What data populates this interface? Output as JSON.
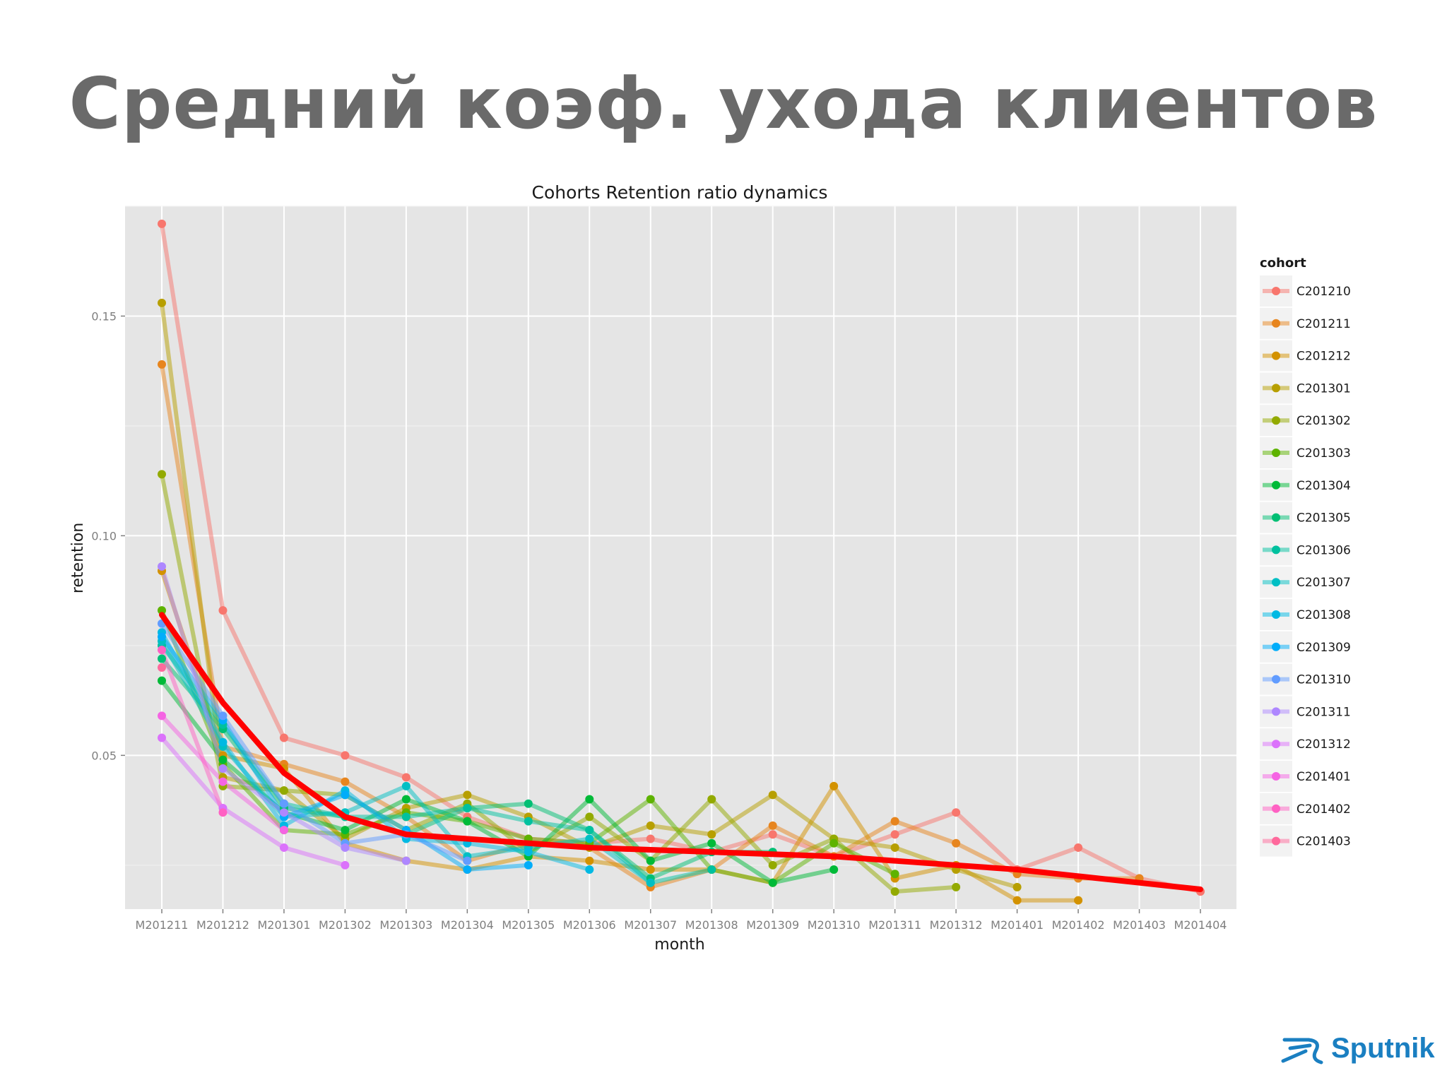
{
  "slide": {
    "title": "Средний коэф. ухода клиентов"
  },
  "logo": {
    "text": "Sputnik",
    "color": "#1a7fc1"
  },
  "chart_data": {
    "type": "line",
    "title": "Cohorts Retention ratio dynamics",
    "xlabel": "month",
    "ylabel": "retention",
    "legend_title": "cohort",
    "legend_position": "right",
    "grid": true,
    "ylim": [
      0.015,
      0.175
    ],
    "yticks": [
      0.05,
      0.1,
      0.15
    ],
    "ytick_labels": [
      "0.05",
      "0.10",
      "0.15"
    ],
    "categories": [
      "M201211",
      "M201212",
      "M201301",
      "M201302",
      "M201303",
      "M201304",
      "M201305",
      "M201306",
      "M201307",
      "M201308",
      "M201309",
      "M201310",
      "M201311",
      "M201312",
      "M201401",
      "M201402",
      "M201403",
      "M201404"
    ],
    "series": [
      {
        "name": "C201210",
        "color": "#F8766D",
        "values": [
          0.171,
          0.083,
          0.054,
          0.05,
          0.045,
          0.036,
          0.031,
          0.03,
          0.031,
          0.028,
          0.032,
          0.027,
          0.032,
          0.037,
          0.024,
          0.029,
          0.022,
          0.019
        ]
      },
      {
        "name": "C201211",
        "color": "#E7851E",
        "values": [
          0.139,
          0.052,
          0.048,
          0.044,
          0.036,
          0.026,
          0.03,
          0.029,
          0.02,
          0.024,
          0.034,
          0.027,
          0.035,
          0.03,
          0.023,
          0.022,
          0.022,
          null
        ]
      },
      {
        "name": "C201212",
        "color": "#D39200",
        "values": [
          0.092,
          0.05,
          0.047,
          0.03,
          0.026,
          0.024,
          0.027,
          0.026,
          0.024,
          0.024,
          0.021,
          0.043,
          0.022,
          0.025,
          0.017,
          0.017,
          null,
          null
        ]
      },
      {
        "name": "C201301",
        "color": "#B79F00",
        "values": [
          0.153,
          0.045,
          0.042,
          0.031,
          0.038,
          0.041,
          0.036,
          0.029,
          0.034,
          0.032,
          0.041,
          0.031,
          0.029,
          0.024,
          0.02,
          null,
          null,
          null
        ]
      },
      {
        "name": "C201302",
        "color": "#93AA00",
        "values": [
          0.114,
          0.043,
          0.042,
          0.041,
          0.033,
          0.039,
          0.028,
          0.036,
          0.026,
          0.04,
          0.025,
          0.031,
          0.019,
          0.02,
          null,
          null,
          null,
          null
        ]
      },
      {
        "name": "C201303",
        "color": "#5EB300",
        "values": [
          0.083,
          0.048,
          0.033,
          0.032,
          0.037,
          0.035,
          0.031,
          0.03,
          0.04,
          0.024,
          0.021,
          0.03,
          0.023,
          null,
          null,
          null,
          null,
          null
        ]
      },
      {
        "name": "C201304",
        "color": "#00BA38",
        "values": [
          0.067,
          0.049,
          0.037,
          0.033,
          0.04,
          0.035,
          0.027,
          0.04,
          0.026,
          0.03,
          0.021,
          0.024,
          null,
          null,
          null,
          null,
          null,
          null
        ]
      },
      {
        "name": "C201305",
        "color": "#00BF74",
        "values": [
          0.072,
          0.056,
          0.038,
          0.036,
          0.032,
          0.038,
          0.039,
          0.033,
          0.022,
          0.028,
          0.028,
          null,
          null,
          null,
          null,
          null,
          null,
          null
        ]
      },
      {
        "name": "C201306",
        "color": "#00C19F",
        "values": [
          0.075,
          0.057,
          0.039,
          0.036,
          0.036,
          0.038,
          0.035,
          0.033,
          0.021,
          0.024,
          null,
          null,
          null,
          null,
          null,
          null,
          null,
          null
        ]
      },
      {
        "name": "C201307",
        "color": "#00BFC4",
        "values": [
          0.076,
          0.052,
          0.036,
          0.037,
          0.043,
          0.027,
          0.029,
          0.031,
          0.021,
          null,
          null,
          null,
          null,
          null,
          null,
          null,
          null,
          null
        ]
      },
      {
        "name": "C201308",
        "color": "#00B9E3",
        "values": [
          0.078,
          0.053,
          0.034,
          0.042,
          0.031,
          0.03,
          0.028,
          0.024,
          null,
          null,
          null,
          null,
          null,
          null,
          null,
          null,
          null,
          null
        ]
      },
      {
        "name": "C201309",
        "color": "#00ADFA",
        "values": [
          0.077,
          0.058,
          0.036,
          0.041,
          0.033,
          0.024,
          0.025,
          null,
          null,
          null,
          null,
          null,
          null,
          null,
          null,
          null,
          null,
          null
        ]
      },
      {
        "name": "C201310",
        "color": "#619CFF",
        "values": [
          0.08,
          0.059,
          0.039,
          0.03,
          0.032,
          0.026,
          null,
          null,
          null,
          null,
          null,
          null,
          null,
          null,
          null,
          null,
          null,
          null
        ]
      },
      {
        "name": "C201311",
        "color": "#AE87FF",
        "values": [
          0.093,
          0.047,
          0.037,
          0.029,
          0.026,
          null,
          null,
          null,
          null,
          null,
          null,
          null,
          null,
          null,
          null,
          null,
          null,
          null
        ]
      },
      {
        "name": "C201312",
        "color": "#DB72FB",
        "values": [
          0.054,
          0.038,
          0.029,
          0.025,
          null,
          null,
          null,
          null,
          null,
          null,
          null,
          null,
          null,
          null,
          null,
          null,
          null,
          null
        ]
      },
      {
        "name": "C201401",
        "color": "#F564E3",
        "values": [
          0.059,
          0.044,
          0.033,
          null,
          null,
          null,
          null,
          null,
          null,
          null,
          null,
          null,
          null,
          null,
          null,
          null,
          null,
          null
        ]
      },
      {
        "name": "C201402",
        "color": "#FF61C3",
        "values": [
          0.074,
          0.037,
          null,
          null,
          null,
          null,
          null,
          null,
          null,
          null,
          null,
          null,
          null,
          null,
          null,
          null,
          null,
          null
        ]
      },
      {
        "name": "C201403",
        "color": "#FF699C",
        "values": [
          0.07,
          null,
          null,
          null,
          null,
          null,
          null,
          null,
          null,
          null,
          null,
          null,
          null,
          null,
          null,
          null,
          null,
          null
        ]
      }
    ],
    "average_line": {
      "color": "#FF0000",
      "values": [
        0.082,
        0.062,
        0.046,
        0.036,
        0.032,
        0.031,
        0.03,
        0.029,
        0.0285,
        0.028,
        0.0275,
        0.027,
        0.026,
        0.025,
        0.024,
        0.0225,
        0.021,
        0.0195
      ]
    }
  }
}
